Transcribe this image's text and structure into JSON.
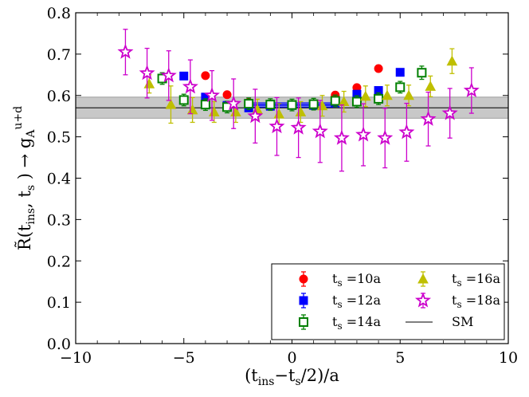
{
  "chart_data": {
    "type": "scatter",
    "xlabel": "(t_ins−t_s/2)/a",
    "ylabel": "R̃(t_ins, t_s) → g_A^{u+d}",
    "xlim": [
      -10,
      10
    ],
    "ylim": [
      0.0,
      0.8
    ],
    "xticks": [
      -10,
      -5,
      0,
      5,
      10
    ],
    "yticks": [
      0.0,
      0.1,
      0.2,
      0.3,
      0.4,
      0.5,
      0.6,
      0.7,
      0.8
    ],
    "ytick_labels": [
      "0.0",
      "0.1",
      "0.2",
      "0.3",
      "0.4",
      "0.5",
      "0.6",
      "0.7",
      "0.8"
    ],
    "xtick_labels": [
      "−10",
      "−5",
      "0",
      "5",
      "10"
    ],
    "legend_position": "lower-right",
    "sm_band": {
      "center": 0.57,
      "low": 0.545,
      "high": 0.596,
      "label": "SM"
    },
    "fit_band": {
      "x": [
        -2,
        2
      ],
      "center": 0.577,
      "low": 0.572,
      "high": 0.582
    },
    "series": [
      {
        "name": "t_s =10a",
        "marker": "circle",
        "color": "#ff0000",
        "points": [
          {
            "x": -4,
            "y": 0.648,
            "err": 0.005
          },
          {
            "x": -3,
            "y": 0.602,
            "err": 0.004
          },
          {
            "x": -2,
            "y": 0.583,
            "err": 0.004
          },
          {
            "x": -1,
            "y": 0.579,
            "err": 0.004
          },
          {
            "x": 0,
            "y": 0.578,
            "err": 0.004
          },
          {
            "x": 1,
            "y": 0.58,
            "err": 0.004
          },
          {
            "x": 2,
            "y": 0.601,
            "err": 0.004
          },
          {
            "x": 3,
            "y": 0.619,
            "err": 0.005
          },
          {
            "x": 4,
            "y": 0.665,
            "err": 0.005
          }
        ]
      },
      {
        "name": "t_s =12a",
        "marker": "square",
        "color": "#0000ff",
        "points": [
          {
            "x": -5,
            "y": 0.647,
            "err": 0.008
          },
          {
            "x": -4,
            "y": 0.596,
            "err": 0.007
          },
          {
            "x": -3,
            "y": 0.576,
            "err": 0.007
          },
          {
            "x": -2,
            "y": 0.57,
            "err": 0.007
          },
          {
            "x": -1,
            "y": 0.574,
            "err": 0.007
          },
          {
            "x": 0,
            "y": 0.576,
            "err": 0.007
          },
          {
            "x": 1,
            "y": 0.576,
            "err": 0.007
          },
          {
            "x": 2,
            "y": 0.582,
            "err": 0.007
          },
          {
            "x": 3,
            "y": 0.603,
            "err": 0.007
          },
          {
            "x": 4,
            "y": 0.612,
            "err": 0.008
          },
          {
            "x": 5,
            "y": 0.656,
            "err": 0.008
          }
        ]
      },
      {
        "name": "t_s =14a",
        "marker": "square-open",
        "color": "#008000",
        "points": [
          {
            "x": -6,
            "y": 0.641,
            "err": 0.014
          },
          {
            "x": -5,
            "y": 0.589,
            "err": 0.014
          },
          {
            "x": -4,
            "y": 0.578,
            "err": 0.014
          },
          {
            "x": -3,
            "y": 0.572,
            "err": 0.014
          },
          {
            "x": -2,
            "y": 0.58,
            "err": 0.014
          },
          {
            "x": -1,
            "y": 0.578,
            "err": 0.014
          },
          {
            "x": 0,
            "y": 0.577,
            "err": 0.014
          },
          {
            "x": 1,
            "y": 0.579,
            "err": 0.014
          },
          {
            "x": 2,
            "y": 0.587,
            "err": 0.014
          },
          {
            "x": 3,
            "y": 0.585,
            "err": 0.014
          },
          {
            "x": 4,
            "y": 0.592,
            "err": 0.014
          },
          {
            "x": 5,
            "y": 0.62,
            "err": 0.014
          },
          {
            "x": 6,
            "y": 0.655,
            "err": 0.016
          }
        ]
      },
      {
        "name": "t_s =16a",
        "marker": "triangle",
        "color": "#bfbf00",
        "points": [
          {
            "x": -6.6,
            "y": 0.628,
            "err": 0.022
          },
          {
            "x": -5.6,
            "y": 0.578,
            "err": 0.045
          },
          {
            "x": -4.6,
            "y": 0.565,
            "err": 0.03
          },
          {
            "x": -3.6,
            "y": 0.56,
            "err": 0.025
          },
          {
            "x": -2.6,
            "y": 0.56,
            "err": 0.025
          },
          {
            "x": -1.6,
            "y": 0.566,
            "err": 0.025
          },
          {
            "x": -0.6,
            "y": 0.555,
            "err": 0.025
          },
          {
            "x": 0.4,
            "y": 0.56,
            "err": 0.025
          },
          {
            "x": 1.4,
            "y": 0.575,
            "err": 0.025
          },
          {
            "x": 2.4,
            "y": 0.585,
            "err": 0.025
          },
          {
            "x": 3.4,
            "y": 0.598,
            "err": 0.025
          },
          {
            "x": 4.4,
            "y": 0.6,
            "err": 0.025
          },
          {
            "x": 5.4,
            "y": 0.6,
            "err": 0.025
          },
          {
            "x": 6.4,
            "y": 0.622,
            "err": 0.025
          },
          {
            "x": 7.4,
            "y": 0.683,
            "err": 0.03
          }
        ]
      },
      {
        "name": "t_s =18a",
        "marker": "star-open",
        "color": "#cc00cc",
        "points": [
          {
            "x": -7.7,
            "y": 0.705,
            "err": 0.055
          },
          {
            "x": -6.7,
            "y": 0.654,
            "err": 0.06
          },
          {
            "x": -5.7,
            "y": 0.648,
            "err": 0.06
          },
          {
            "x": -4.7,
            "y": 0.621,
            "err": 0.065
          },
          {
            "x": -3.7,
            "y": 0.6,
            "err": 0.06
          },
          {
            "x": -2.7,
            "y": 0.58,
            "err": 0.06
          },
          {
            "x": -1.7,
            "y": 0.55,
            "err": 0.065
          },
          {
            "x": -0.7,
            "y": 0.525,
            "err": 0.07
          },
          {
            "x": 0.3,
            "y": 0.522,
            "err": 0.072
          },
          {
            "x": 1.3,
            "y": 0.513,
            "err": 0.075
          },
          {
            "x": 2.3,
            "y": 0.497,
            "err": 0.08
          },
          {
            "x": 3.3,
            "y": 0.505,
            "err": 0.075
          },
          {
            "x": 4.3,
            "y": 0.497,
            "err": 0.072
          },
          {
            "x": 5.3,
            "y": 0.511,
            "err": 0.07
          },
          {
            "x": 6.3,
            "y": 0.543,
            "err": 0.065
          },
          {
            "x": 7.3,
            "y": 0.557,
            "err": 0.06
          },
          {
            "x": 8.3,
            "y": 0.612,
            "err": 0.055
          }
        ]
      }
    ],
    "legend": [
      {
        "series": "t_s =10a",
        "text_base": "t",
        "text_sub": "s",
        "text_rest": " =10a"
      },
      {
        "series": "t_s =16a",
        "text_base": "t",
        "text_sub": "s",
        "text_rest": " =16a"
      },
      {
        "series": "t_s =12a",
        "text_base": "t",
        "text_sub": "s",
        "text_rest": " =12a"
      },
      {
        "series": "t_s =18a",
        "text_base": "t",
        "text_sub": "s",
        "text_rest": " =18a"
      },
      {
        "series": "t_s =14a",
        "text_base": "t",
        "text_sub": "s",
        "text_rest": " =14a"
      },
      {
        "series": "SM",
        "text_base": "SM",
        "text_sub": "",
        "text_rest": ""
      }
    ]
  }
}
